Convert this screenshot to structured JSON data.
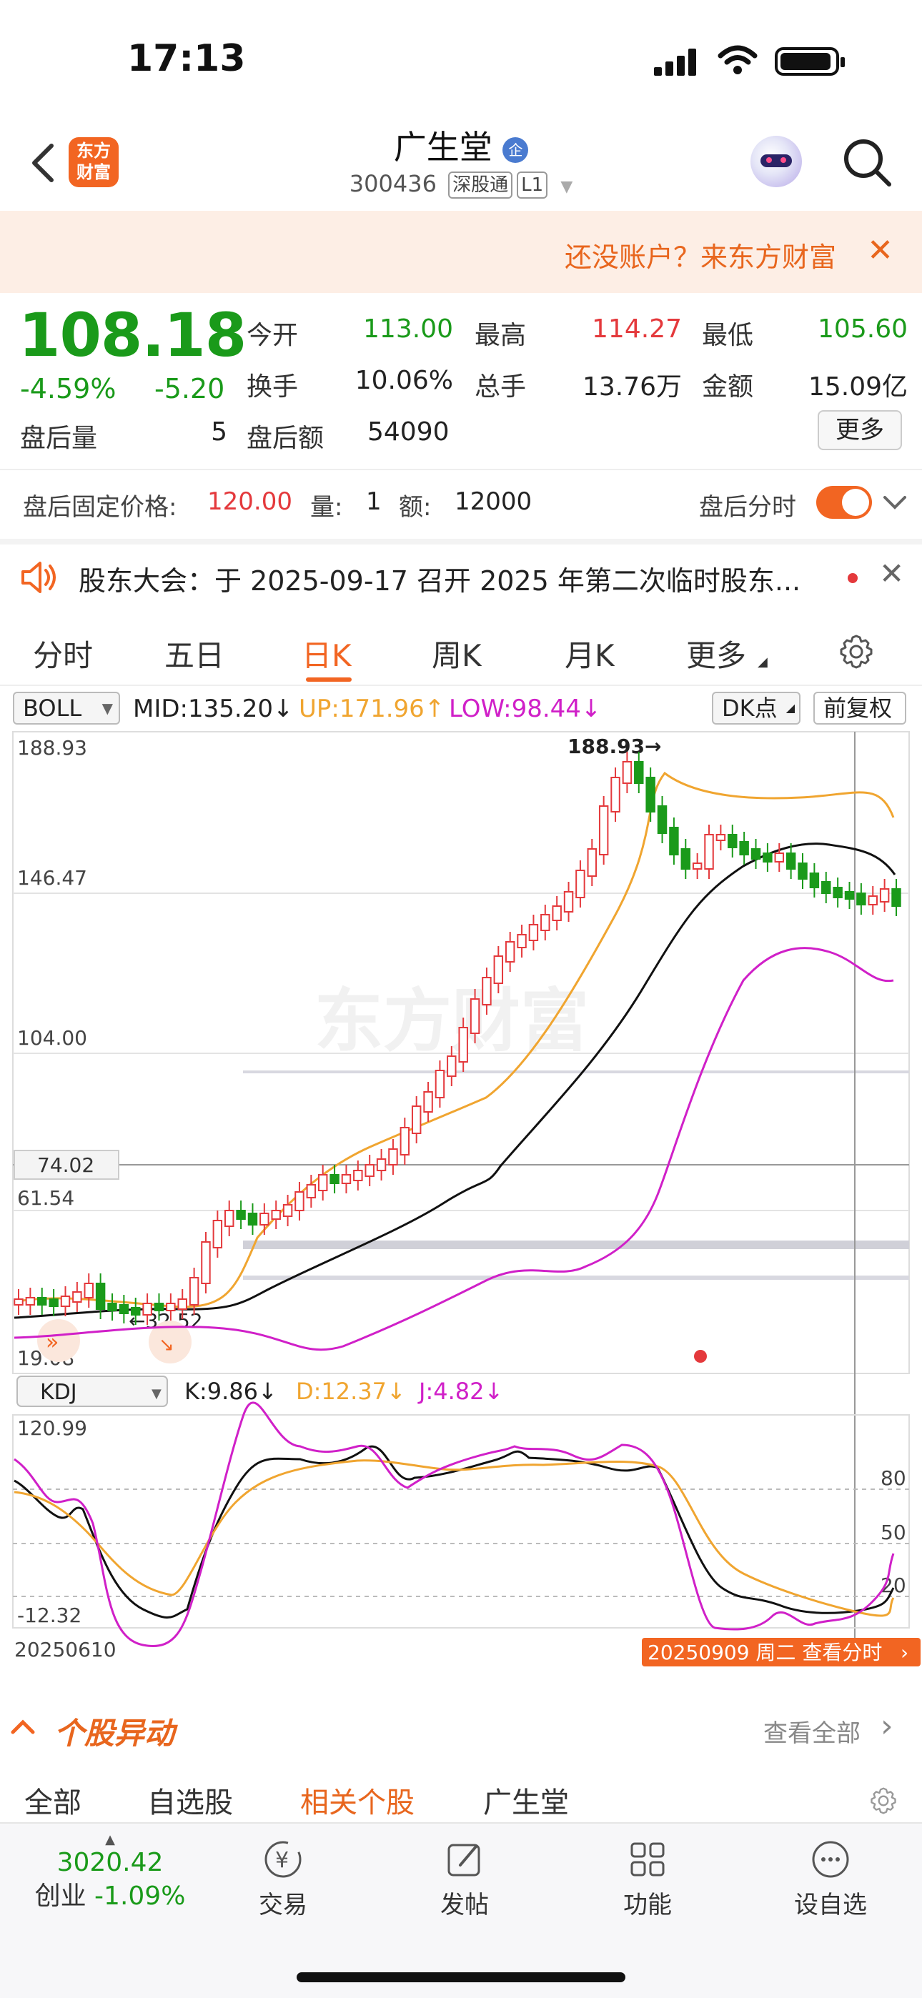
{
  "status": {
    "time": "17:13"
  },
  "header": {
    "app_logo": "东方财富",
    "stock_name": "广生堂",
    "badge": "企",
    "code": "300436",
    "tag1": "深股通",
    "tag2": "L1"
  },
  "promo": {
    "text": "还没账户？来东方财富",
    "close": "✕"
  },
  "quote": {
    "price": "108.18",
    "change_pct": "-4.59%",
    "change": "-5.20",
    "after_vol_label": "盘后量",
    "after_vol": "5",
    "open_label": "今开",
    "open": "113.00",
    "high_label": "最高",
    "high": "114.27",
    "low_label": "最低",
    "low": "105.60",
    "turnover_label": "换手",
    "turnover": "10.06%",
    "volume_label": "总手",
    "volume": "13.76万",
    "amount_label": "金额",
    "amount": "15.09亿",
    "after_amt_label": "盘后额",
    "after_amt": "54090",
    "more": "更多"
  },
  "fixed_price": {
    "label": "盘后固定价格:",
    "price": "120.00",
    "qty_label": "量:",
    "qty": "1",
    "amt_label": "额:",
    "amt": "12000",
    "intraday_label": "盘后分时"
  },
  "notice": {
    "text": "股东大会：于 2025-09-17 召开 2025 年第二次临时股东..."
  },
  "tabs": [
    "分时",
    "五日",
    "日K",
    "周K",
    "月K",
    "更多"
  ],
  "boll": {
    "selector": "BOLL",
    "mid": "MID:135.20",
    "up": "UP:171.96",
    "low": "LOW:98.44",
    "dk": "DK点",
    "adjust": "前复权",
    "mid_arrow": "↓",
    "up_arrow": "↑",
    "low_arrow": "↓"
  },
  "price_axis": {
    "top": "188.93",
    "mid1": "146.47",
    "mid2": "104.00",
    "cursor": "74.02",
    "l1": "61.54",
    "bottom": "19.08",
    "max_marker": "188.93→",
    "min_marker": "←32.52"
  },
  "kdj": {
    "selector": "KDJ",
    "k": "K:9.86",
    "d": "D:12.37",
    "j": "J:4.82",
    "k_arrow": "↓",
    "d_arrow": "↓",
    "j_arrow": "↓",
    "top": "120.99",
    "bottom": "-12.32",
    "ref80": "80",
    "ref50": "50",
    "ref20": "20",
    "start_date": "20250610",
    "end_date": "20250909 周二 查看分时"
  },
  "news": {
    "title": "个股异动",
    "view_all": "查看全部",
    "tabs": [
      "全部",
      "自选股",
      "相关个股",
      "广生堂"
    ]
  },
  "bottom_nav": {
    "index_value": "3020.42",
    "index_name": "创业",
    "index_change": "-1.09%",
    "items": [
      "交易",
      "发帖",
      "功能",
      "设自选"
    ]
  },
  "colors": {
    "accent": "#f26522",
    "up": "#e4393c",
    "down": "#1a9a1a",
    "boll_up": "#f0a530",
    "boll_low": "#d020c8"
  }
}
